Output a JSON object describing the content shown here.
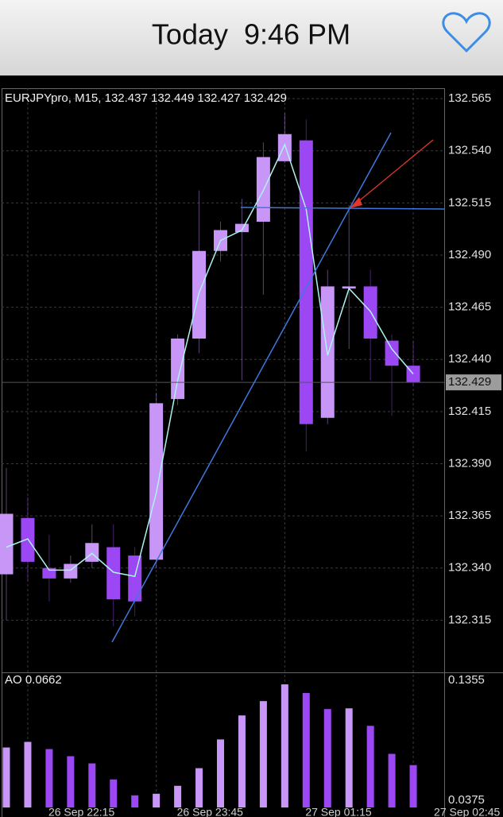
{
  "header": {
    "title": "Today  9:46 PM"
  },
  "chart_data": [
    {
      "type": "candlestick",
      "title": "EURJPYpro, M15, 132.437 132.449 132.427 132.429",
      "categories": [
        null,
        "26 Sep 22:15",
        null,
        null,
        null,
        null,
        null,
        "26 Sep 23:45",
        null,
        null,
        null,
        null,
        null,
        "27 Sep 01:15",
        null,
        null,
        null,
        null,
        null,
        "27 Sep 02:45"
      ],
      "open": [
        132.337,
        132.364,
        132.34,
        132.335,
        132.343,
        132.35,
        132.346,
        132.344,
        132.421,
        132.45,
        132.492,
        132.501,
        132.506,
        132.535,
        132.545,
        132.412,
        132.474,
        132.475,
        132.449,
        132.437
      ],
      "high": [
        132.388,
        132.374,
        132.356,
        132.346,
        132.361,
        132.361,
        132.35,
        132.424,
        132.452,
        132.521,
        132.506,
        132.517,
        132.544,
        132.558,
        132.555,
        132.483,
        132.514,
        132.483,
        132.452,
        132.449
      ],
      "low": [
        132.315,
        132.334,
        132.324,
        132.333,
        132.34,
        132.312,
        132.317,
        132.34,
        132.418,
        132.443,
        132.487,
        132.43,
        132.471,
        132.534,
        132.396,
        132.409,
        132.445,
        132.43,
        132.413,
        132.427
      ],
      "close": [
        132.366,
        132.343,
        132.335,
        132.342,
        132.352,
        132.325,
        132.324,
        132.419,
        132.45,
        132.492,
        132.502,
        132.505,
        132.537,
        132.548,
        132.409,
        132.475,
        132.475,
        132.45,
        132.437,
        132.429
      ],
      "up_color": "#c796f6",
      "down_color": "#9b47f3",
      "line": {
        "color": "#aef3f0",
        "values": [
          132.35,
          132.354,
          132.339,
          132.339,
          132.347,
          132.338,
          132.336,
          132.376,
          132.43,
          132.472,
          132.497,
          132.502,
          132.521,
          132.543,
          132.512,
          132.442,
          132.474,
          132.463,
          132.445,
          132.433
        ]
      },
      "ylim": [
        132.29,
        132.57
      ],
      "yticks": [
        132.315,
        {
          "value": 132.34,
          "label": "132.340"
        },
        132.365,
        {
          "value": 132.39,
          "label": "132.390"
        },
        132.415,
        {
          "value": 132.44,
          "label": "132.440"
        },
        132.465,
        {
          "value": 132.49,
          "label": "132.490"
        },
        132.515,
        {
          "value": 132.54,
          "label": "132.540"
        },
        132.565
      ],
      "grid": true
    },
    {
      "type": "bar",
      "title": "AO 0.0662",
      "values": [
        0.0806,
        0.0852,
        0.0793,
        0.0735,
        0.0676,
        0.0545,
        0.0415,
        0.0428,
        0.0493,
        0.0637,
        0.0872,
        0.1068,
        0.1185,
        0.1322,
        0.1251,
        0.112,
        0.1126,
        0.0983,
        0.0754,
        0.0662
      ],
      "up_color": "#c796f6",
      "down_color": "#9b47f3",
      "ylim": [
        0.0316,
        0.142
      ],
      "yticks": [
        0.0375,
        0.1355
      ]
    }
  ]
}
